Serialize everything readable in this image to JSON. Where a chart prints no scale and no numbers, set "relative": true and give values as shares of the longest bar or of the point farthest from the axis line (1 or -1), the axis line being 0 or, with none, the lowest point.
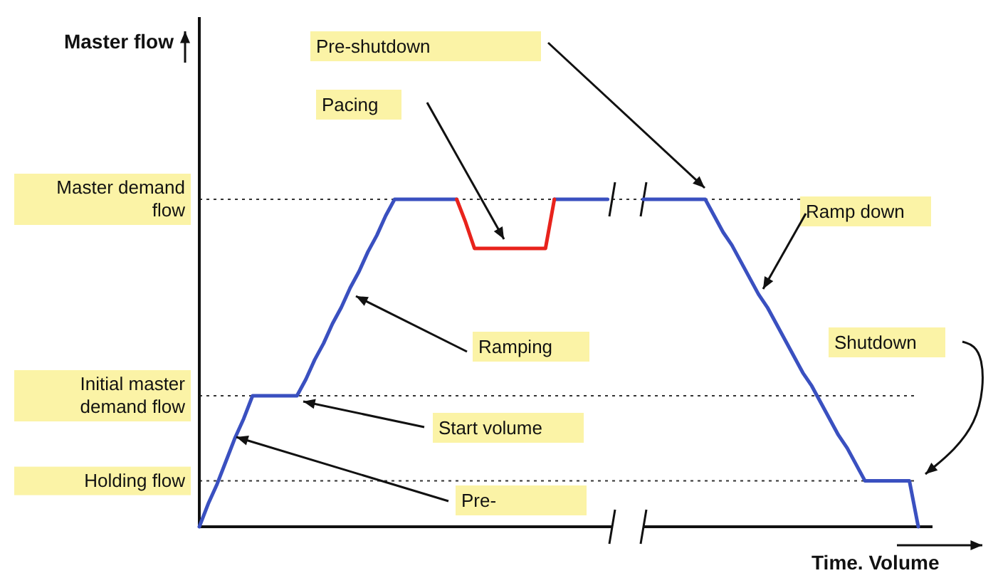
{
  "chart_data": {
    "type": "line",
    "relative": true,
    "xlabel": "Time. Volume",
    "categories": [
      null,
      null,
      null,
      null,
      null,
      null,
      null,
      null,
      null,
      null,
      null,
      null,
      null,
      null,
      null,
      null,
      null,
      null,
      null,
      null,
      null,
      null,
      null,
      null,
      null,
      null,
      null,
      null,
      null,
      null,
      null,
      null,
      null,
      null,
      null,
      null,
      null,
      null,
      null,
      null,
      null,
      null,
      null,
      null,
      null,
      null,
      null,
      null,
      null,
      null,
      null,
      null,
      null,
      null,
      null,
      null,
      null,
      null,
      null,
      null,
      null,
      null,
      null,
      null,
      null,
      null,
      null,
      null,
      null,
      null,
      null,
      null,
      null,
      null,
      null,
      null,
      null,
      null,
      null,
      null,
      null,
      null
    ],
    "series": [
      {
        "color": "#3a50c0",
        "values": [
          0,
          0.07,
          0.13,
          0.2,
          0.27,
          0.33,
          0.4,
          0.4,
          0.4,
          0.4,
          0.4,
          0.4,
          0.45,
          0.51,
          0.56,
          0.62,
          0.67,
          0.73,
          0.78,
          0.84,
          0.89,
          0.95,
          1,
          1,
          1,
          1,
          1,
          1,
          1,
          1,
          null,
          null,
          null,
          null,
          null,
          null,
          null,
          null,
          null,
          null,
          1,
          1,
          1,
          1,
          1,
          1,
          1,
          null,
          null,
          null,
          1,
          1,
          1,
          1,
          1,
          1,
          1,
          1,
          0.95,
          0.9,
          0.86,
          0.81,
          0.76,
          0.71,
          0.67,
          0.62,
          0.57,
          0.52,
          0.47,
          0.43,
          0.38,
          0.33,
          0.28,
          0.24,
          0.19,
          0.14,
          0.14,
          0.14,
          0.14,
          0.14,
          0.14,
          0
        ]
      },
      {
        "color": "#e8231c",
        "values": [
          null,
          null,
          null,
          null,
          null,
          null,
          null,
          null,
          null,
          null,
          null,
          null,
          null,
          null,
          null,
          null,
          null,
          null,
          null,
          null,
          null,
          null,
          null,
          null,
          null,
          null,
          null,
          null,
          null,
          1,
          0.93,
          0.85,
          0.85,
          0.85,
          0.85,
          0.85,
          0.85,
          0.85,
          0.85,
          0.85,
          1,
          null,
          null,
          null,
          null,
          null,
          null,
          null,
          null,
          null,
          null,
          null,
          null,
          null,
          null,
          null,
          null,
          null,
          null,
          null,
          null,
          null,
          null,
          null,
          null,
          null,
          null,
          null,
          null,
          null,
          null,
          null,
          null,
          null,
          null,
          null,
          null,
          null,
          null,
          null,
          null,
          null
        ]
      }
    ],
    "ref_lines": [
      {
        "axis": "y",
        "value": 1,
        "label": "Master demand flow",
        "line_style": "dotted",
        "color": "#333333"
      },
      {
        "axis": "y",
        "value": 0.4,
        "label": "Initial master demand flow",
        "line_style": "dotted",
        "color": "#333333"
      },
      {
        "axis": "y",
        "value": 0.14,
        "label": "Holding flow",
        "line_style": "dotted",
        "color": "#333333"
      }
    ],
    "annotations": [
      "Pre-shutdown",
      "Pacing",
      "Ramp down",
      "Ramping",
      "Start volume",
      "Shutdown",
      "Pre-",
      "Master flow"
    ]
  }
}
